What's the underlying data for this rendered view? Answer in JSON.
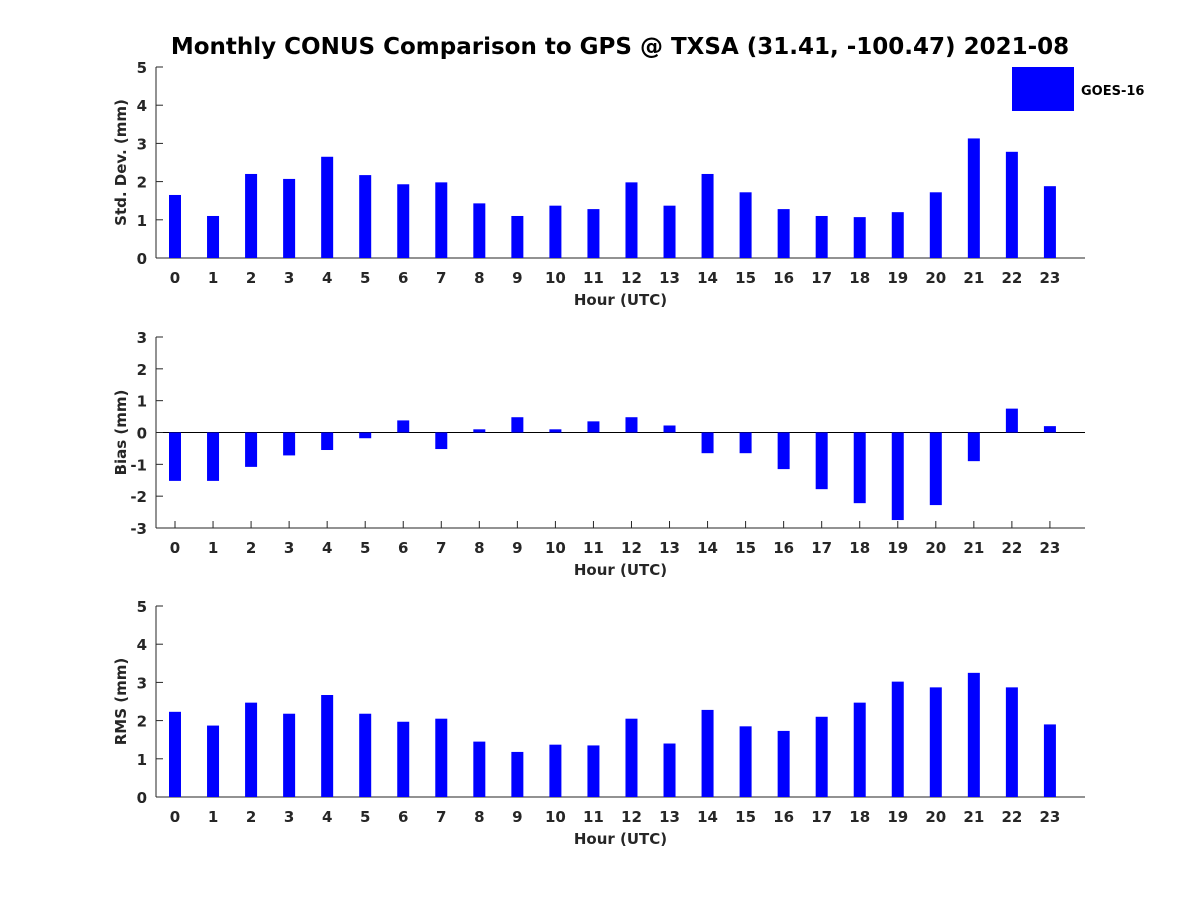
{
  "title": "Monthly CONUS Comparison to GPS @ TXSA (31.41, -100.47) 2021-08",
  "legend": {
    "label": "GOES-16",
    "color": "#0000ff"
  },
  "chart_data": [
    {
      "type": "bar",
      "categories": [
        "0",
        "1",
        "2",
        "3",
        "4",
        "5",
        "6",
        "7",
        "8",
        "9",
        "10",
        "11",
        "12",
        "13",
        "14",
        "15",
        "16",
        "17",
        "18",
        "19",
        "20",
        "21",
        "22",
        "23"
      ],
      "series": [
        {
          "name": "GOES-16",
          "values": [
            1.65,
            1.1,
            2.2,
            2.07,
            2.65,
            2.17,
            1.93,
            1.98,
            1.43,
            1.1,
            1.37,
            1.28,
            1.98,
            1.37,
            2.2,
            1.72,
            1.28,
            1.1,
            1.07,
            1.2,
            1.72,
            3.13,
            2.78,
            1.88
          ]
        }
      ],
      "xlabel": "Hour (UTC)",
      "ylabel": "Std. Dev. (mm)",
      "ylim": [
        0,
        5
      ],
      "yticks": [
        "0",
        "1",
        "2",
        "3",
        "4",
        "5"
      ],
      "grid": false,
      "legend_position": "top-right"
    },
    {
      "type": "bar",
      "categories": [
        "0",
        "1",
        "2",
        "3",
        "4",
        "5",
        "6",
        "7",
        "8",
        "9",
        "10",
        "11",
        "12",
        "13",
        "14",
        "15",
        "16",
        "17",
        "18",
        "19",
        "20",
        "21",
        "22",
        "23"
      ],
      "series": [
        {
          "name": "GOES-16",
          "values": [
            -1.52,
            -1.52,
            -1.08,
            -0.72,
            -0.55,
            -0.18,
            0.38,
            -0.52,
            0.1,
            0.48,
            0.1,
            0.35,
            0.48,
            0.22,
            -0.65,
            -0.65,
            -1.15,
            -1.78,
            -2.22,
            -2.75,
            -2.28,
            -0.9,
            0.75,
            0.2
          ]
        }
      ],
      "xlabel": "Hour (UTC)",
      "ylabel": "Bias (mm)",
      "ylim": [
        -3,
        3
      ],
      "yticks": [
        "-3",
        "-2",
        "-1",
        "0",
        "1",
        "2",
        "3"
      ],
      "grid": false
    },
    {
      "type": "bar",
      "categories": [
        "0",
        "1",
        "2",
        "3",
        "4",
        "5",
        "6",
        "7",
        "8",
        "9",
        "10",
        "11",
        "12",
        "13",
        "14",
        "15",
        "16",
        "17",
        "18",
        "19",
        "20",
        "21",
        "22",
        "23"
      ],
      "series": [
        {
          "name": "GOES-16",
          "values": [
            2.23,
            1.87,
            2.47,
            2.18,
            2.67,
            2.18,
            1.97,
            2.05,
            1.45,
            1.18,
            1.37,
            1.35,
            2.05,
            1.4,
            2.28,
            1.85,
            1.73,
            2.1,
            2.47,
            3.02,
            2.87,
            3.25,
            2.87,
            1.9
          ]
        }
      ],
      "xlabel": "Hour (UTC)",
      "ylabel": "RMS (mm)",
      "ylim": [
        0,
        5
      ],
      "yticks": [
        "0",
        "1",
        "2",
        "3",
        "4",
        "5"
      ],
      "grid": false
    }
  ]
}
